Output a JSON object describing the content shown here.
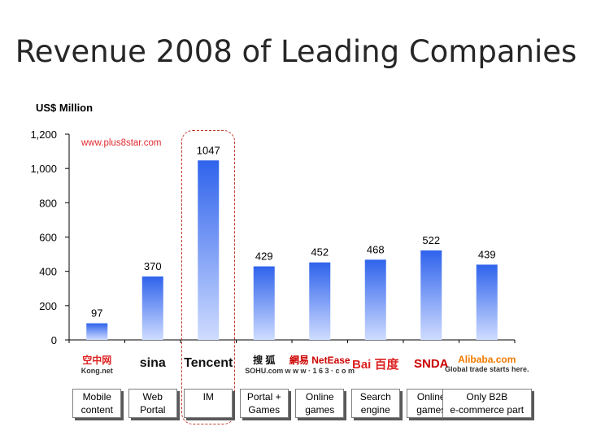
{
  "title": "Revenue 2008 of Leading Companies",
  "unit_label": "US$ Million",
  "watermark": "www.plus8star.com",
  "chart_data": {
    "type": "bar",
    "title": "Revenue 2008 of Leading Companies",
    "ylabel": "US$ Million",
    "ylim": [
      0,
      1200
    ],
    "yticks": [
      "0",
      "200",
      "400",
      "600",
      "800",
      "1,000",
      "1,200"
    ],
    "categories": [
      "Kong.net",
      "Sina",
      "Tencent",
      "Sohu",
      "NetEase",
      "Baidu",
      "Shanda",
      "Alibaba"
    ],
    "values": [
      97,
      370,
      1047,
      429,
      452,
      468,
      522,
      439
    ],
    "bar_color": "#2f63ec",
    "bar_color_light": "#cfdcff"
  },
  "logos": [
    {
      "text_top": "空中网",
      "text_bottom": "Kong.net",
      "color": "#d22"
    },
    {
      "text_top": "",
      "text_bottom": "sina",
      "color": "#111"
    },
    {
      "text_top": "",
      "text_bottom": "Tencent",
      "color": "#111"
    },
    {
      "text_top": "搜 狐",
      "text_bottom": "SOHU.com",
      "color": "#111"
    },
    {
      "text_top": "網易 NetEase",
      "text_bottom": "w w w · 1 6 3 · c o m",
      "color": "#c00"
    },
    {
      "text_top": "Bai 百度",
      "text_bottom": "",
      "color": "#d22"
    },
    {
      "text_top": "SNDA",
      "text_bottom": "",
      "color": "#c00"
    },
    {
      "text_top": "Alibaba.com",
      "text_bottom": "Global trade starts here.",
      "color": "#f07a00"
    }
  ],
  "categories_labels": [
    "Mobile\ncontent",
    "Web\nPortal",
    "IM",
    "Portal +\nGames",
    "Online\ngames",
    "Search\nengine",
    "Online\ngames",
    "Only B2B\ne-commerce part"
  ]
}
